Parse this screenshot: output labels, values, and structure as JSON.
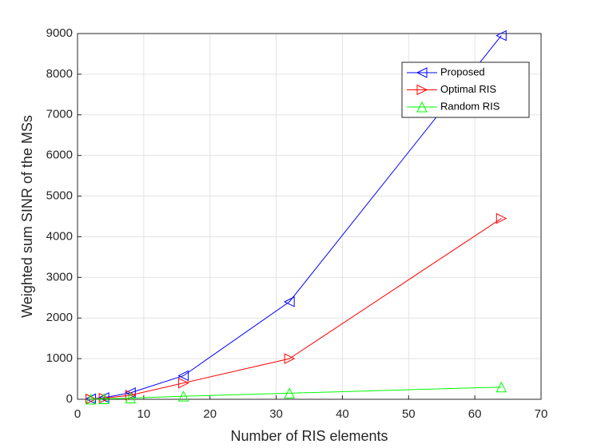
{
  "chart_data": {
    "type": "line",
    "xlabel": "Number of RIS elements",
    "ylabel": "Weighted sum SINR of the MSs",
    "x": [
      2,
      4,
      8,
      16,
      32,
      64
    ],
    "series": [
      {
        "name": "Proposed",
        "color": "#0000ff",
        "marker": "triangle-left",
        "values": [
          10,
          40,
          160,
          580,
          2400,
          8950
        ]
      },
      {
        "name": "Optimal RIS",
        "color": "#ff0000",
        "marker": "triangle-right",
        "values": [
          5,
          25,
          100,
          400,
          1000,
          4450
        ]
      },
      {
        "name": "Random RIS",
        "color": "#00ff00",
        "marker": "triangle-up",
        "values": [
          3,
          10,
          30,
          75,
          150,
          300
        ]
      }
    ],
    "xlim": [
      0,
      70
    ],
    "xticks": [
      0,
      10,
      20,
      30,
      40,
      50,
      60,
      70
    ],
    "ylim": [
      0,
      9000
    ],
    "yticks": [
      0,
      1000,
      2000,
      3000,
      4000,
      5000,
      6000,
      7000,
      8000,
      9000
    ],
    "grid": true,
    "legend": "northeast"
  }
}
